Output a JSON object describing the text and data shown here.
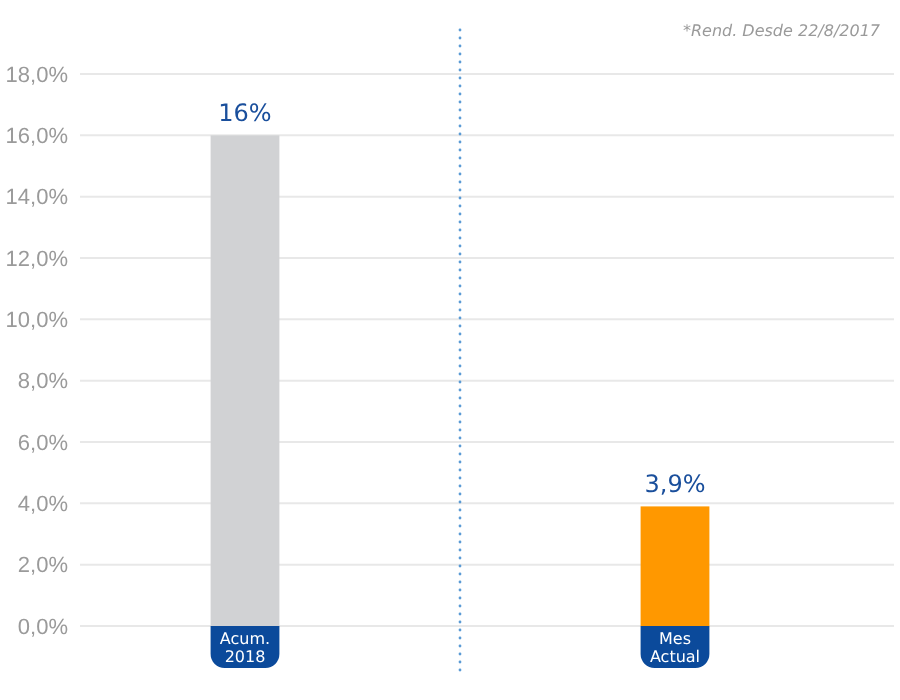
{
  "chart_data": {
    "type": "bar",
    "categories": [
      "Acum. 2018",
      "Mes Actual"
    ],
    "values": [
      16,
      3.9
    ],
    "colors": [
      "#d1d2d4",
      "#ff9800"
    ],
    "value_labels": [
      "16%",
      "3,9%"
    ],
    "ylim": [
      0,
      18
    ],
    "yticks": [
      {
        "value": 0,
        "label": "0,0%"
      },
      {
        "value": 2,
        "label": "2,0%"
      },
      {
        "value": 4,
        "label": "4,0%"
      },
      {
        "value": 6,
        "label": "6,0%"
      },
      {
        "value": 8,
        "label": "8,0%"
      },
      {
        "value": 10,
        "label": "10,0%"
      },
      {
        "value": 12,
        "label": "12,0%"
      },
      {
        "value": 14,
        "label": "14,0%"
      },
      {
        "value": 16,
        "label": "16,0%"
      },
      {
        "value": 18,
        "label": "18,0%"
      }
    ],
    "grid": "y",
    "annotations": [
      "*Rend. Desde 22/8/2017"
    ]
  }
}
